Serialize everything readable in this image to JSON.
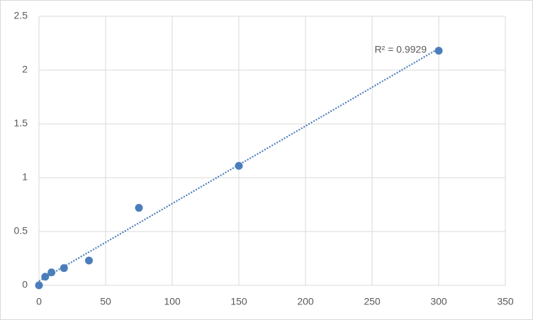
{
  "chart_data": {
    "type": "scatter",
    "series": [
      {
        "color": "#4a7ebb",
        "x": [
          0,
          4.69,
          9.38,
          18.75,
          37.5,
          75,
          150,
          300
        ],
        "values": [
          0,
          0.08,
          0.12,
          0.16,
          0.23,
          0.72,
          1.11,
          2.18
        ]
      }
    ],
    "trendline": "linear",
    "annotation": "R² = 0.9929",
    "xlim": [
      0,
      350
    ],
    "xticks": [
      0,
      50,
      100,
      150,
      200,
      250,
      300,
      350
    ],
    "ylim": [
      0,
      2.5
    ],
    "yticks": [
      0,
      0.5,
      1,
      1.5,
      2,
      2.5
    ],
    "grid": true
  }
}
